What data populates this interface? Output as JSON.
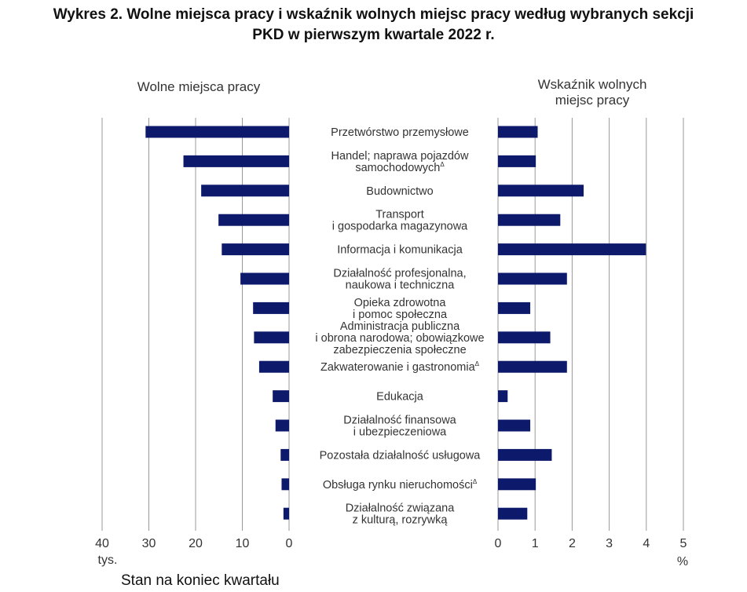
{
  "title": {
    "line1": "Wykres 2. Wolne miejsca pracy i wskaźnik wolnych miejsc pracy według wybranych sekcji",
    "line2": "PKD w pierwszym kwartale 2022 r."
  },
  "footnote": "Stan na koniec kwartału",
  "colors": {
    "bar": "#0d1a6b",
    "grid": "#999999",
    "text": "#333333"
  },
  "chart_data": [
    {
      "type": "bar",
      "orientation": "horizontal",
      "direction": "right-to-left",
      "title": "Wolne miejsca pracy",
      "xlim": [
        0,
        40
      ],
      "ticks": [
        "40",
        "30",
        "20",
        "10",
        "0"
      ],
      "tick_values": [
        40,
        30,
        20,
        10,
        0
      ],
      "unit": "tys.",
      "grid": true,
      "categories": [
        "Przetwórstwo przemysłowe",
        "Handel; naprawa pojazdów samochodowych",
        "Budownictwo",
        "Transport i gospodarka magazynowa",
        "Informacja i komunikacja",
        "Działalność profesjonalna, naukowa i techniczna",
        "Opieka zdrowotna i pomoc społeczna",
        "Administracja publiczna i obrona narodowa; obowiązkowe zabezpieczenia społeczne",
        "Zakwaterowanie i gastronomia",
        "Edukacja",
        "Działalność finansowa i ubezpieczeniowa",
        "Pozostała działalność usługowa",
        "Obsługa rynku nieruchomości",
        "Działalność związana z kulturą, rozrywką"
      ],
      "values": [
        30.7,
        22.6,
        18.8,
        15.1,
        14.4,
        10.4,
        7.7,
        7.5,
        6.4,
        3.5,
        2.9,
        1.8,
        1.6,
        1.2
      ]
    },
    {
      "type": "bar",
      "orientation": "horizontal",
      "title": "Wskaźnik wolnych miejsc pracy",
      "xlim": [
        0,
        5
      ],
      "ticks": [
        "0",
        "1",
        "2",
        "3",
        "4",
        "5"
      ],
      "tick_values": [
        0,
        1,
        2,
        3,
        4,
        5
      ],
      "unit": "%",
      "grid": true,
      "values": [
        1.07,
        1.02,
        2.31,
        1.68,
        3.99,
        1.86,
        0.87,
        1.41,
        1.86,
        0.26,
        0.87,
        1.45,
        1.02,
        0.79
      ]
    }
  ],
  "labels": [
    {
      "lines": [
        "Przetwórstwo przemysłowe"
      ],
      "mark": ""
    },
    {
      "lines": [
        "Handel; naprawa pojazdów",
        "samochodowych"
      ],
      "mark": "Δ"
    },
    {
      "lines": [
        "Budownictwo"
      ],
      "mark": ""
    },
    {
      "lines": [
        "Transport",
        "i gospodarka magazynowa"
      ],
      "mark": ""
    },
    {
      "lines": [
        "Informacja i komunikacja"
      ],
      "mark": ""
    },
    {
      "lines": [
        "Działalność profesjonalna,",
        "naukowa i techniczna"
      ],
      "mark": ""
    },
    {
      "lines": [
        "Opieka zdrowotna",
        "i pomoc społeczna"
      ],
      "mark": ""
    },
    {
      "lines": [
        "Administracja publiczna",
        "i obrona narodowa; obowiązkowe",
        "zabezpieczenia społeczne"
      ],
      "mark": ""
    },
    {
      "lines": [
        "Zakwaterowanie i gastronomia"
      ],
      "mark": "Δ"
    },
    {
      "lines": [
        "Edukacja"
      ],
      "mark": ""
    },
    {
      "lines": [
        "Działalność finansowa",
        "i ubezpieczeniowa"
      ],
      "mark": ""
    },
    {
      "lines": [
        "Pozostała działalność usługowa"
      ],
      "mark": ""
    },
    {
      "lines": [
        "Obsługa rynku nieruchomości"
      ],
      "mark": "Δ"
    },
    {
      "lines": [
        "Działalność związana",
        "z kulturą, rozrywką"
      ],
      "mark": ""
    }
  ],
  "left_panel_title": "Wolne miejsca pracy",
  "right_panel_title": [
    "Wskaźnik wolnych",
    "miejsc pracy"
  ]
}
